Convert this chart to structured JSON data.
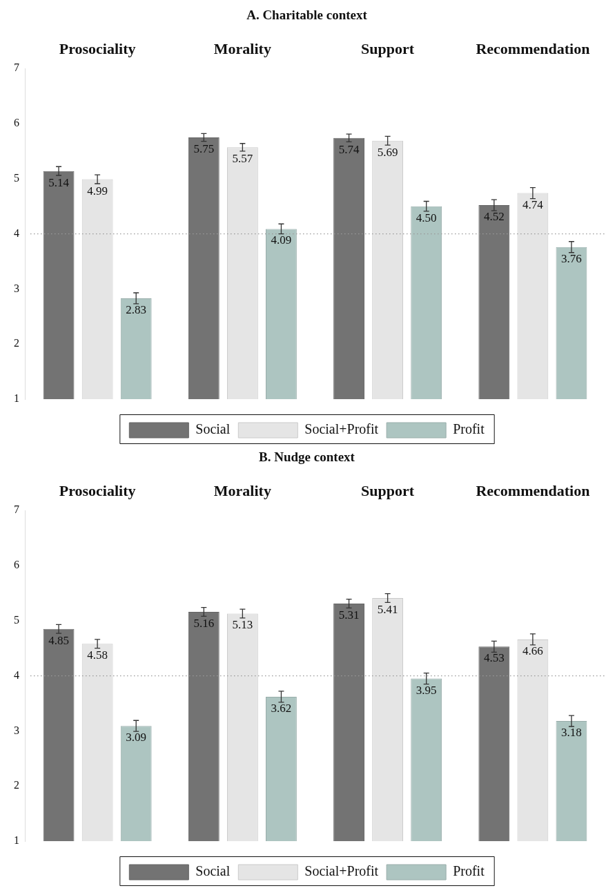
{
  "chart_data": [
    {
      "type": "bar",
      "title": "A. Charitable context",
      "categories": [
        "Prosociality",
        "Morality",
        "Support",
        "Recommendation"
      ],
      "series": [
        {
          "name": "Social",
          "color": "#737373",
          "values": [
            5.14,
            5.75,
            5.74,
            4.52
          ],
          "errors": [
            0.08,
            0.07,
            0.07,
            0.1
          ],
          "value_labels": [
            "5.14",
            "5.75",
            "5.74",
            "4.52"
          ]
        },
        {
          "name": "Social+Profit",
          "color": "#e5e5e5",
          "values": [
            4.99,
            5.57,
            5.69,
            4.74
          ],
          "errors": [
            0.08,
            0.07,
            0.08,
            0.1
          ],
          "value_labels": [
            "4.99",
            "5.57",
            "5.69",
            "4.74"
          ]
        },
        {
          "name": "Profit",
          "color": "#adc5c1",
          "values": [
            2.83,
            4.09,
            4.5,
            3.76
          ],
          "errors": [
            0.1,
            0.09,
            0.09,
            0.1
          ],
          "value_labels": [
            "2.83",
            "4.09",
            "4.50",
            "3.76"
          ]
        }
      ],
      "ylim": [
        1,
        7
      ],
      "yticks": [
        1,
        2,
        3,
        4,
        5,
        6,
        7
      ],
      "grid": false,
      "legend": "bottom",
      "ref_lines": [
        {
          "axis": "y",
          "value": 4,
          "color": "#999999",
          "line_style": "dotted"
        }
      ]
    },
    {
      "type": "bar",
      "title": "B. Nudge context",
      "categories": [
        "Prosociality",
        "Morality",
        "Support",
        "Recommendation"
      ],
      "series": [
        {
          "name": "Social",
          "color": "#737373",
          "values": [
            4.85,
            5.16,
            5.31,
            4.53
          ],
          "errors": [
            0.08,
            0.08,
            0.08,
            0.1
          ],
          "value_labels": [
            "4.85",
            "5.16",
            "5.31",
            "4.53"
          ]
        },
        {
          "name": "Social+Profit",
          "color": "#e5e5e5",
          "values": [
            4.58,
            5.13,
            5.41,
            4.66
          ],
          "errors": [
            0.08,
            0.08,
            0.08,
            0.1
          ],
          "value_labels": [
            "4.58",
            "5.13",
            "5.41",
            "4.66"
          ]
        },
        {
          "name": "Profit",
          "color": "#adc5c1",
          "values": [
            3.09,
            3.62,
            3.95,
            3.18
          ],
          "errors": [
            0.1,
            0.1,
            0.1,
            0.1
          ],
          "value_labels": [
            "3.09",
            "3.62",
            "3.95",
            "3.18"
          ]
        }
      ],
      "ylim": [
        1,
        7
      ],
      "yticks": [
        1,
        2,
        3,
        4,
        5,
        6,
        7
      ],
      "grid": false,
      "legend": "bottom",
      "ref_lines": [
        {
          "axis": "y",
          "value": 4,
          "color": "#999999",
          "line_style": "dotted"
        }
      ]
    }
  ]
}
